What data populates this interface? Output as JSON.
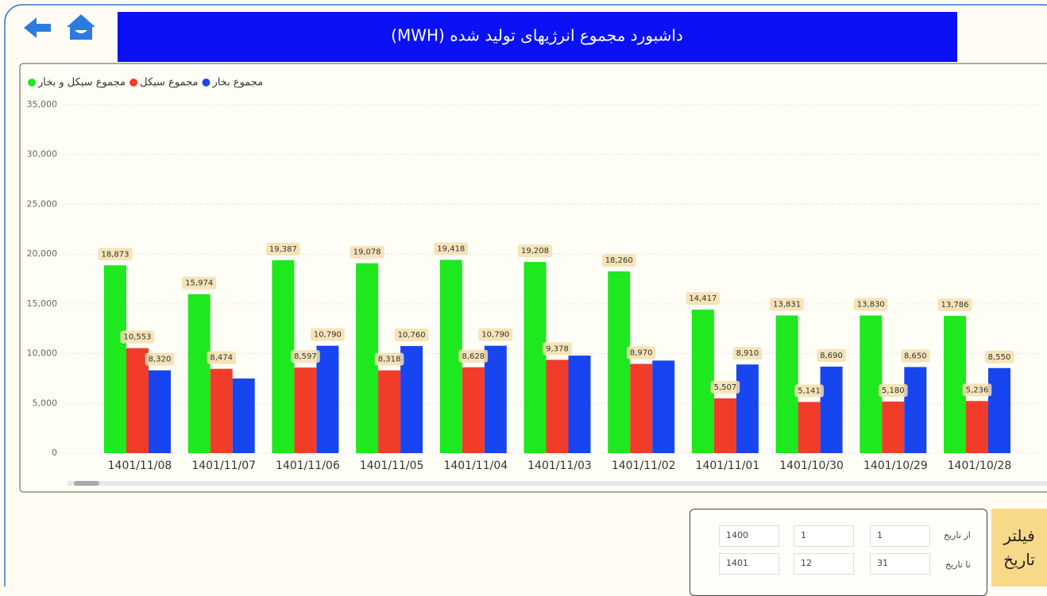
{
  "header": {
    "title": "داشبورد مجموع انرژیهای تولید شده (MWH)"
  },
  "chart_data": {
    "type": "bar",
    "categories": [
      "1401/11/08",
      "1401/11/07",
      "1401/11/06",
      "1401/11/05",
      "1401/11/04",
      "1401/11/03",
      "1401/11/02",
      "1401/11/01",
      "1401/10/30",
      "1401/10/29",
      "1401/10/28"
    ],
    "series": [
      {
        "name": "مجموع سیکل و بخار",
        "color": "#1ee81e",
        "values": [
          18873,
          15974,
          19387,
          19078,
          19418,
          19208,
          18260,
          14417,
          13831,
          13830,
          13786
        ],
        "value_labels": [
          "18,873",
          "15,974",
          "19,387",
          "19,078",
          "19,418",
          "19,208",
          "18,260",
          "14,417",
          "13,831",
          "13,830",
          "13,786"
        ]
      },
      {
        "name": "مجموع سیکل",
        "color": "#f23c2a",
        "values": [
          10553,
          8474,
          8597,
          8318,
          8628,
          9378,
          8970,
          5507,
          5141,
          5180,
          5236
        ],
        "value_labels": [
          "10,553",
          "8,474",
          "8,597",
          "8,318",
          "8,628",
          "9,378",
          "8,970",
          "5,507",
          "5,141",
          "5,180",
          "5,236"
        ]
      },
      {
        "name": "مجموع بخار",
        "color": "#1746f0",
        "values": [
          8320,
          7500,
          10790,
          10760,
          10790,
          9800,
          9300,
          8910,
          8690,
          8650,
          8550
        ],
        "value_labels": [
          "8,320",
          null,
          "10,790",
          "10,760",
          "10,790",
          null,
          null,
          "8,910",
          "8,690",
          "8,650",
          "8,550"
        ]
      }
    ],
    "ylim": [
      0,
      35000
    ],
    "yticks": [
      0,
      {
        "value": 5000,
        "label": "5,000"
      },
      {
        "value": 10000,
        "label": "10,000"
      },
      {
        "value": 15000,
        "label": "15,000"
      },
      {
        "value": 20000,
        "label": "20,000"
      },
      {
        "value": 25000,
        "label": "25,000"
      },
      {
        "value": 30000,
        "label": "30,000"
      },
      {
        "value": 35000,
        "label": "35,000"
      }
    ],
    "grid": true,
    "legend": "top-left"
  },
  "filter": {
    "title_lines": [
      "فیلتر",
      "تاریخ"
    ],
    "rows": [
      {
        "label": "از تاریخ",
        "year": "1400",
        "month": "1",
        "day": "1"
      },
      {
        "label": "تا تاریخ",
        "year": "1401",
        "month": "12",
        "day": "31"
      }
    ]
  }
}
